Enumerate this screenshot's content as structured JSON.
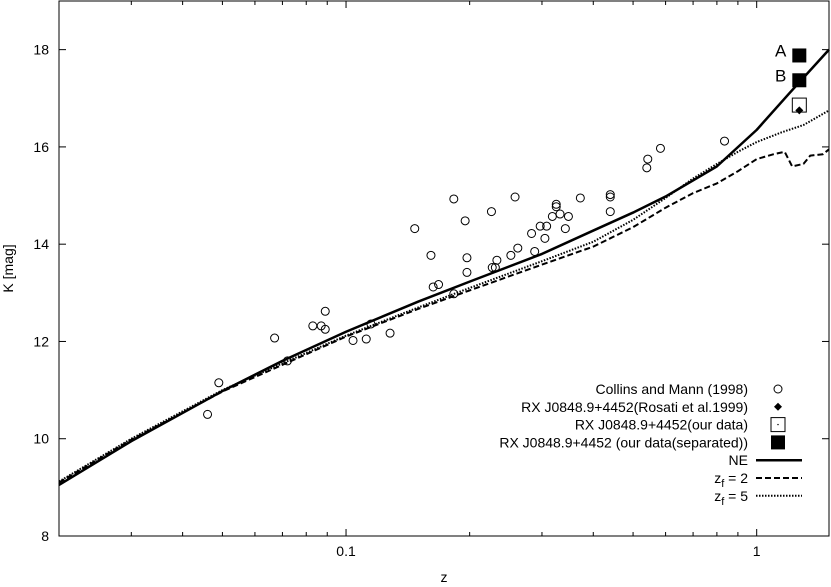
{
  "chart_data": {
    "type": "scatter",
    "xlabel": "z",
    "ylabel": "K [mag]",
    "xscale": "log",
    "xlim": [
      0.02,
      1.5
    ],
    "ylim": [
      8,
      19
    ],
    "x_ticks": [
      {
        "value": 0.1,
        "label": "0.1"
      },
      {
        "value": 1,
        "label": "1"
      }
    ],
    "y_ticks": [
      {
        "value": 8,
        "label": "8"
      },
      {
        "value": 10,
        "label": "10"
      },
      {
        "value": 12,
        "label": "12"
      },
      {
        "value": 14,
        "label": "14"
      },
      {
        "value": 16,
        "label": "16"
      },
      {
        "value": 18,
        "label": "18"
      }
    ],
    "grid": false,
    "legend_position": "bottom-right",
    "series": [
      {
        "name": "Collins and Mann (1998)",
        "kind": "points",
        "marker": "open-circle",
        "points": [
          [
            0.046,
            10.5
          ],
          [
            0.049,
            11.15
          ],
          [
            0.067,
            12.07
          ],
          [
            0.072,
            11.6
          ],
          [
            0.083,
            12.32
          ],
          [
            0.087,
            12.32
          ],
          [
            0.089,
            12.62
          ],
          [
            0.089,
            12.25
          ],
          [
            0.104,
            12.02
          ],
          [
            0.112,
            12.05
          ],
          [
            0.115,
            12.36
          ],
          [
            0.128,
            12.17
          ],
          [
            0.147,
            14.32
          ],
          [
            0.161,
            13.77
          ],
          [
            0.163,
            13.12
          ],
          [
            0.168,
            13.17
          ],
          [
            0.183,
            14.93
          ],
          [
            0.183,
            12.98
          ],
          [
            0.195,
            14.48
          ],
          [
            0.197,
            13.72
          ],
          [
            0.197,
            13.42
          ],
          [
            0.226,
            14.67
          ],
          [
            0.227,
            13.52
          ],
          [
            0.231,
            13.52
          ],
          [
            0.233,
            13.67
          ],
          [
            0.252,
            13.77
          ],
          [
            0.258,
            14.97
          ],
          [
            0.262,
            13.92
          ],
          [
            0.283,
            14.22
          ],
          [
            0.288,
            13.85
          ],
          [
            0.297,
            14.37
          ],
          [
            0.305,
            14.12
          ],
          [
            0.308,
            14.37
          ],
          [
            0.318,
            14.57
          ],
          [
            0.325,
            14.77
          ],
          [
            0.325,
            14.82
          ],
          [
            0.332,
            14.62
          ],
          [
            0.342,
            14.32
          ],
          [
            0.348,
            14.57
          ],
          [
            0.372,
            14.95
          ],
          [
            0.44,
            14.97
          ],
          [
            0.44,
            15.02
          ],
          [
            0.44,
            14.67
          ],
          [
            0.54,
            15.57
          ],
          [
            0.543,
            15.75
          ],
          [
            0.583,
            15.97
          ],
          [
            0.835,
            16.12
          ]
        ]
      },
      {
        "name": "RX J0848.9+4452(Rosati et al.1999)",
        "kind": "points",
        "marker": "filled-diamond",
        "points": [
          [
            1.27,
            16.75
          ]
        ]
      },
      {
        "name": "RX J0848.9+4452(our data)",
        "kind": "points",
        "marker": "open-square",
        "points": [
          [
            1.27,
            16.86
          ]
        ]
      },
      {
        "name": "RX J0848.9+4452 (our data(separated))",
        "kind": "points",
        "marker": "filled-square",
        "points": [
          [
            1.27,
            17.88
          ],
          [
            1.27,
            17.37
          ]
        ]
      },
      {
        "name": "NE",
        "kind": "line",
        "style": "solid",
        "points": [
          [
            0.02,
            9.05
          ],
          [
            0.03,
            9.95
          ],
          [
            0.05,
            10.98
          ],
          [
            0.07,
            11.6
          ],
          [
            0.1,
            12.2
          ],
          [
            0.15,
            12.82
          ],
          [
            0.2,
            13.23
          ],
          [
            0.3,
            13.8
          ],
          [
            0.4,
            14.28
          ],
          [
            0.5,
            14.65
          ],
          [
            0.6,
            14.98
          ],
          [
            0.8,
            15.6
          ],
          [
            1.0,
            16.35
          ],
          [
            1.2,
            17.1
          ],
          [
            1.5,
            18.0
          ]
        ]
      },
      {
        "name": "z_f = 2",
        "kind": "line",
        "style": "dashed",
        "points": [
          [
            0.02,
            9.1
          ],
          [
            0.03,
            9.98
          ],
          [
            0.05,
            10.97
          ],
          [
            0.07,
            11.52
          ],
          [
            0.1,
            12.1
          ],
          [
            0.15,
            12.67
          ],
          [
            0.2,
            13.05
          ],
          [
            0.3,
            13.58
          ],
          [
            0.4,
            13.95
          ],
          [
            0.5,
            14.35
          ],
          [
            0.6,
            14.75
          ],
          [
            0.7,
            15.05
          ],
          [
            0.8,
            15.25
          ],
          [
            0.9,
            15.5
          ],
          [
            1.0,
            15.75
          ],
          [
            1.1,
            15.85
          ],
          [
            1.17,
            15.9
          ],
          [
            1.22,
            15.6
          ],
          [
            1.3,
            15.65
          ],
          [
            1.35,
            15.82
          ],
          [
            1.45,
            15.85
          ],
          [
            1.5,
            15.95
          ]
        ]
      },
      {
        "name": "z_f = 5",
        "kind": "line",
        "style": "dotted",
        "points": [
          [
            0.02,
            9.12
          ],
          [
            0.03,
            10.0
          ],
          [
            0.05,
            11.0
          ],
          [
            0.07,
            11.55
          ],
          [
            0.1,
            12.12
          ],
          [
            0.15,
            12.7
          ],
          [
            0.2,
            13.1
          ],
          [
            0.3,
            13.65
          ],
          [
            0.4,
            14.05
          ],
          [
            0.5,
            14.5
          ],
          [
            0.6,
            14.95
          ],
          [
            0.7,
            15.35
          ],
          [
            0.8,
            15.65
          ],
          [
            0.9,
            15.9
          ],
          [
            1.0,
            16.1
          ],
          [
            1.15,
            16.3
          ],
          [
            1.3,
            16.45
          ],
          [
            1.5,
            16.75
          ]
        ]
      }
    ],
    "annotations": [
      {
        "text": "A",
        "x": 1.27,
        "y": 17.88
      },
      {
        "text": "B",
        "x": 1.27,
        "y": 17.37
      }
    ],
    "legend": [
      {
        "label": "Collins and Mann (1998)",
        "marker": "open-circle"
      },
      {
        "label": "RX J0848.9+4452(Rosati et al.1999)",
        "marker": "filled-diamond"
      },
      {
        "label": "RX J0848.9+4452(our data)",
        "marker": "open-square"
      },
      {
        "label": "RX J0848.9+4452 (our data(separated))",
        "marker": "filled-square"
      },
      {
        "label": "NE",
        "marker": "solid-line"
      },
      {
        "label": "z",
        "sub": "f",
        "suffix": " = 2",
        "marker": "dashed-line"
      },
      {
        "label": "z",
        "sub": "f",
        "suffix": " = 5",
        "marker": "dotted-line"
      }
    ]
  }
}
